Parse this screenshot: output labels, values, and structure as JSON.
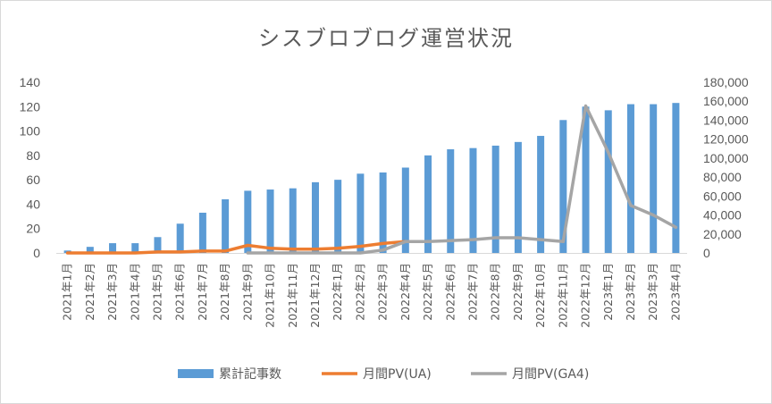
{
  "chart_data": {
    "type": "bar+line",
    "title": "シスブロブログ運営状況",
    "categories": [
      "2021年1月",
      "2021年2月",
      "2021年3月",
      "2021年4月",
      "2021年5月",
      "2021年6月",
      "2021年7月",
      "2021年8月",
      "2021年9月",
      "2021年10月",
      "2021年11月",
      "2021年12月",
      "2022年1月",
      "2022年2月",
      "2022年3月",
      "2022年4月",
      "2022年5月",
      "2022年6月",
      "2022年7月",
      "2022年8月",
      "2022年9月",
      "2022年10月",
      "2022年11月",
      "2022年12月",
      "2023年1月",
      "2023年2月",
      "2023年3月",
      "2023年4月"
    ],
    "y_left": {
      "min": 0,
      "max": 140,
      "step": 20,
      "ticks": [
        "0",
        "20",
        "40",
        "60",
        "80",
        "100",
        "120",
        "140"
      ]
    },
    "y_right": {
      "min": 0,
      "max": 180000,
      "step": 20000,
      "ticks": [
        "0",
        "20,000",
        "40,000",
        "60,000",
        "80,000",
        "100,000",
        "120,000",
        "140,000",
        "160,000",
        "180,000"
      ]
    },
    "series": [
      {
        "name": "累計記事数",
        "kind": "bar",
        "axis": "left",
        "color": "#5b9bd5",
        "values": [
          2,
          5,
          8,
          8,
          13,
          24,
          33,
          44,
          51,
          52,
          53,
          58,
          60,
          65,
          66,
          70,
          80,
          85,
          86,
          88,
          91,
          96,
          109,
          120,
          117,
          122,
          122,
          123
        ]
      },
      {
        "name": "月間PV(UA)",
        "kind": "line",
        "axis": "right",
        "color": "#ed7d31",
        "values": [
          0,
          0,
          0,
          0,
          1000,
          1000,
          2000,
          2000,
          8000,
          5000,
          4000,
          4000,
          5000,
          7000,
          10000,
          12000,
          null,
          null,
          null,
          null,
          null,
          null,
          null,
          null,
          null,
          null,
          null,
          null
        ]
      },
      {
        "name": "月間PV(GA4)",
        "kind": "line",
        "axis": "right",
        "color": "#a5a5a5",
        "values": [
          null,
          null,
          null,
          null,
          null,
          null,
          null,
          null,
          0,
          0,
          0,
          0,
          0,
          0,
          3000,
          12000,
          12000,
          13000,
          14000,
          16000,
          16000,
          14000,
          12000,
          155000,
          106000,
          50000,
          40000,
          27000
        ]
      }
    ],
    "legend_position": "bottom",
    "grid": false
  }
}
